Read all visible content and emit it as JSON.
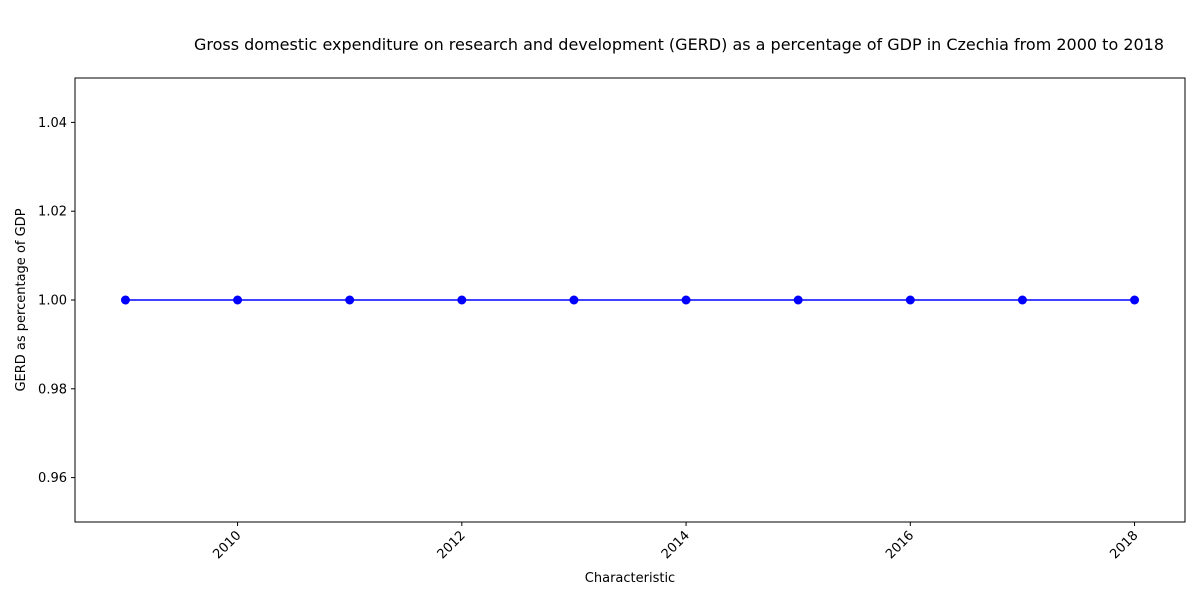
{
  "chart_data": {
    "type": "line",
    "title": "Gross domestic expenditure on research and development (GERD) as a percentage of GDP in Czechia from 2000 to 2018",
    "xlabel": "Characteristic",
    "ylabel": "GERD as percentage of GDP",
    "x": [
      2009,
      2010,
      2011,
      2012,
      2013,
      2014,
      2015,
      2016,
      2017,
      2018
    ],
    "series": [
      {
        "values": [
          1.0,
          1.0,
          1.0,
          1.0,
          1.0,
          1.0,
          1.0,
          1.0,
          1.0,
          1.0
        ],
        "color": "#0000ff",
        "marker": "circle"
      }
    ],
    "xlim": [
      2008.55,
      2018.45
    ],
    "ylim": [
      0.95,
      1.05
    ],
    "xticks": [
      2010,
      2012,
      2014,
      2016,
      2018
    ],
    "xtick_labels": [
      "2010",
      "2012",
      "2014",
      "2016",
      "2018"
    ],
    "yticks": [
      0.96,
      0.98,
      1.0,
      1.02,
      1.04
    ],
    "ytick_labels": [
      "0.96",
      "0.98",
      "1.00",
      "1.02",
      "1.04"
    ],
    "grid": false,
    "legend": "none"
  }
}
